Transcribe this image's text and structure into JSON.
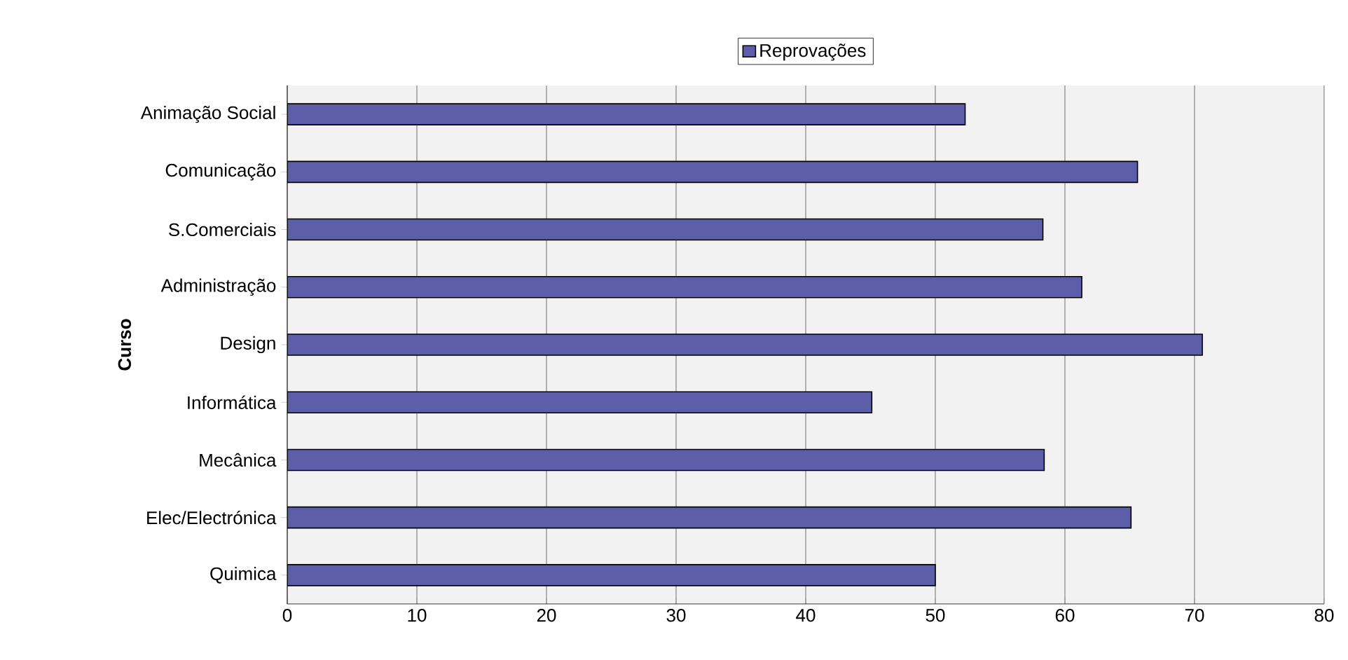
{
  "chart_data": {
    "type": "bar",
    "orientation": "horizontal",
    "ylabel": "Curso",
    "categories": [
      "Animação Social",
      "Comunicação",
      "S.Comerciais",
      "Administração",
      "Design",
      "Informática",
      "Mecânica",
      "Elec/Electrónica",
      "Quimica"
    ],
    "series": [
      {
        "name": "Reprovações",
        "color": "#5c5eaa",
        "values": [
          52.3,
          65.6,
          58.3,
          61.3,
          70.6,
          45.1,
          58.4,
          65.1,
          50
        ]
      }
    ],
    "xlim": [
      0,
      80
    ],
    "xticks": [
      0,
      10,
      20,
      30,
      40,
      50,
      60,
      70,
      80
    ],
    "grid": "x",
    "legend": "top"
  }
}
